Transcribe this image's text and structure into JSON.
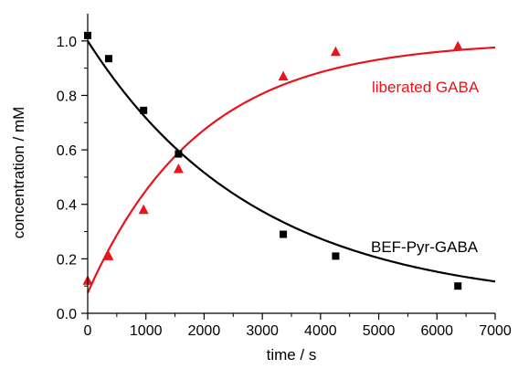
{
  "chart_data": {
    "type": "scatter",
    "xlabel": "time / s",
    "ylabel": "concentration / mM",
    "xlim": [
      0,
      7000
    ],
    "ylim": [
      0,
      1.1
    ],
    "x_ticks": [
      0,
      1000,
      2000,
      3000,
      4000,
      5000,
      6000,
      7000
    ],
    "y_ticks": [
      0.0,
      0.2,
      0.4,
      0.6,
      0.8,
      1.0
    ],
    "x_tick_labels": [
      "0",
      "1000",
      "2000",
      "3000",
      "4000",
      "5000",
      "6000",
      "7000"
    ],
    "y_tick_labels": [
      "0.0",
      "0.2",
      "0.4",
      "0.6",
      "0.8",
      "1.0"
    ],
    "grid": false,
    "series": [
      {
        "name": "BEF-Pyr-GABA",
        "color": "#000000",
        "marker": "square",
        "points": [
          {
            "x": 0,
            "y": 1.02
          },
          {
            "x": 360,
            "y": 0.935
          },
          {
            "x": 960,
            "y": 0.745
          },
          {
            "x": 1560,
            "y": 0.585
          },
          {
            "x": 3360,
            "y": 0.29
          },
          {
            "x": 4260,
            "y": 0.21
          },
          {
            "x": 6360,
            "y": 0.1
          }
        ],
        "fit": {
          "model": "exponential",
          "A": 0.03,
          "B": 0.97,
          "tau": 2900
        }
      },
      {
        "name": "liberated GABA",
        "color": "#e8141b",
        "marker": "triangle",
        "points": [
          {
            "x": 0,
            "y": 0.12
          },
          {
            "x": 360,
            "y": 0.21
          },
          {
            "x": 960,
            "y": 0.38
          },
          {
            "x": 1560,
            "y": 0.53
          },
          {
            "x": 3360,
            "y": 0.87
          },
          {
            "x": 4260,
            "y": 0.96
          },
          {
            "x": 6360,
            "y": 0.98
          }
        ],
        "fit": {
          "model": "exponential",
          "A": 1.0,
          "B": -0.925,
          "tau": 1920
        }
      }
    ]
  }
}
